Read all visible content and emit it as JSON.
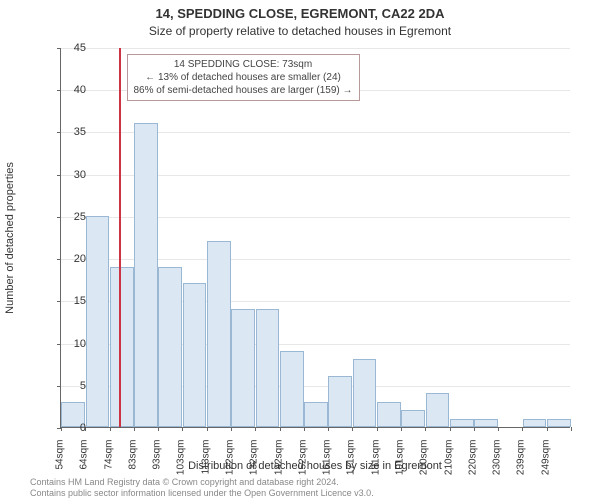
{
  "title": "14, SPEDDING CLOSE, EGREMONT, CA22 2DA",
  "subtitle": "Size of property relative to detached houses in Egremont",
  "ylabel": "Number of detached properties",
  "xlabel": "Distribution of detached houses by size in Egremont",
  "credit1": "Contains HM Land Registry data © Crown copyright and database right 2024.",
  "credit2": "Contains public sector information licensed under the Open Government Licence v3.0.",
  "chart": {
    "type": "histogram",
    "background_color": "#ffffff",
    "grid_color": "#e7e7e7",
    "axis_color": "#666666",
    "bar_fill": "#dbe8f4",
    "bar_border": "#9ab7d4",
    "marker_color": "#cc3344",
    "infobox_border": "#b89898",
    "ylim": [
      0,
      45
    ],
    "ytick_step": 5,
    "xticks": [
      "54sqm",
      "64sqm",
      "74sqm",
      "83sqm",
      "93sqm",
      "103sqm",
      "113sqm",
      "122sqm",
      "132sqm",
      "142sqm",
      "152sqm",
      "161sqm",
      "171sqm",
      "181sqm",
      "191sqm",
      "200sqm",
      "210sqm",
      "220sqm",
      "230sqm",
      "239sqm",
      "249sqm"
    ],
    "values": [
      3,
      25,
      19,
      36,
      19,
      17,
      22,
      14,
      14,
      9,
      3,
      6,
      8,
      3,
      2,
      4,
      1,
      1,
      0,
      1,
      1
    ],
    "marker_value": 73,
    "x_range": [
      50,
      254
    ],
    "infobox": {
      "line1": "14 SPEDDING CLOSE: 73sqm",
      "line2": "← 13% of detached houses are smaller (24)",
      "line3": "86% of semi-detached houses are larger (159) →"
    },
    "title_fontsize": 13,
    "subtitle_fontsize": 12,
    "label_fontsize": 11,
    "tick_fontsize": 10,
    "credit_fontsize": 9
  }
}
